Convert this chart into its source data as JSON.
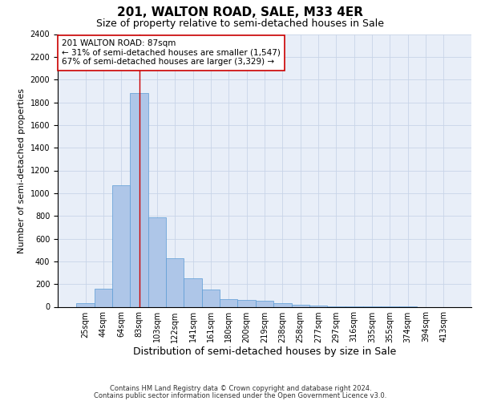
{
  "title1": "201, WALTON ROAD, SALE, M33 4ER",
  "title2": "Size of property relative to semi-detached houses in Sale",
  "xlabel": "Distribution of semi-detached houses by size in Sale",
  "ylabel": "Number of semi-detached properties",
  "categories": [
    "25sqm",
    "44sqm",
    "64sqm",
    "83sqm",
    "103sqm",
    "122sqm",
    "141sqm",
    "161sqm",
    "180sqm",
    "200sqm",
    "219sqm",
    "238sqm",
    "258sqm",
    "277sqm",
    "297sqm",
    "316sqm",
    "335sqm",
    "355sqm",
    "374sqm",
    "394sqm",
    "413sqm"
  ],
  "values": [
    30,
    160,
    1070,
    1880,
    790,
    430,
    250,
    150,
    65,
    60,
    55,
    35,
    20,
    10,
    5,
    3,
    2,
    1,
    1,
    0,
    0
  ],
  "bar_color": "#aec6e8",
  "bar_edge_color": "#5b9bd5",
  "grid_color": "#c8d4e8",
  "background_color": "#e8eef8",
  "red_line_color": "#cc0000",
  "red_line_index": 3.5,
  "annotation_text": "201 WALTON ROAD: 87sqm\n← 31% of semi-detached houses are smaller (1,547)\n67% of semi-detached houses are larger (3,329) →",
  "annotation_box_color": "#ffffff",
  "annotation_box_edge": "#cc0000",
  "ylim": [
    0,
    2400
  ],
  "yticks": [
    0,
    200,
    400,
    600,
    800,
    1000,
    1200,
    1400,
    1600,
    1800,
    2000,
    2200,
    2400
  ],
  "footer1": "Contains HM Land Registry data © Crown copyright and database right 2024.",
  "footer2": "Contains public sector information licensed under the Open Government Licence v3.0.",
  "title1_fontsize": 11,
  "title2_fontsize": 9,
  "xlabel_fontsize": 9,
  "ylabel_fontsize": 8,
  "tick_fontsize": 7,
  "annotation_fontsize": 7.5,
  "footer_fontsize": 6
}
